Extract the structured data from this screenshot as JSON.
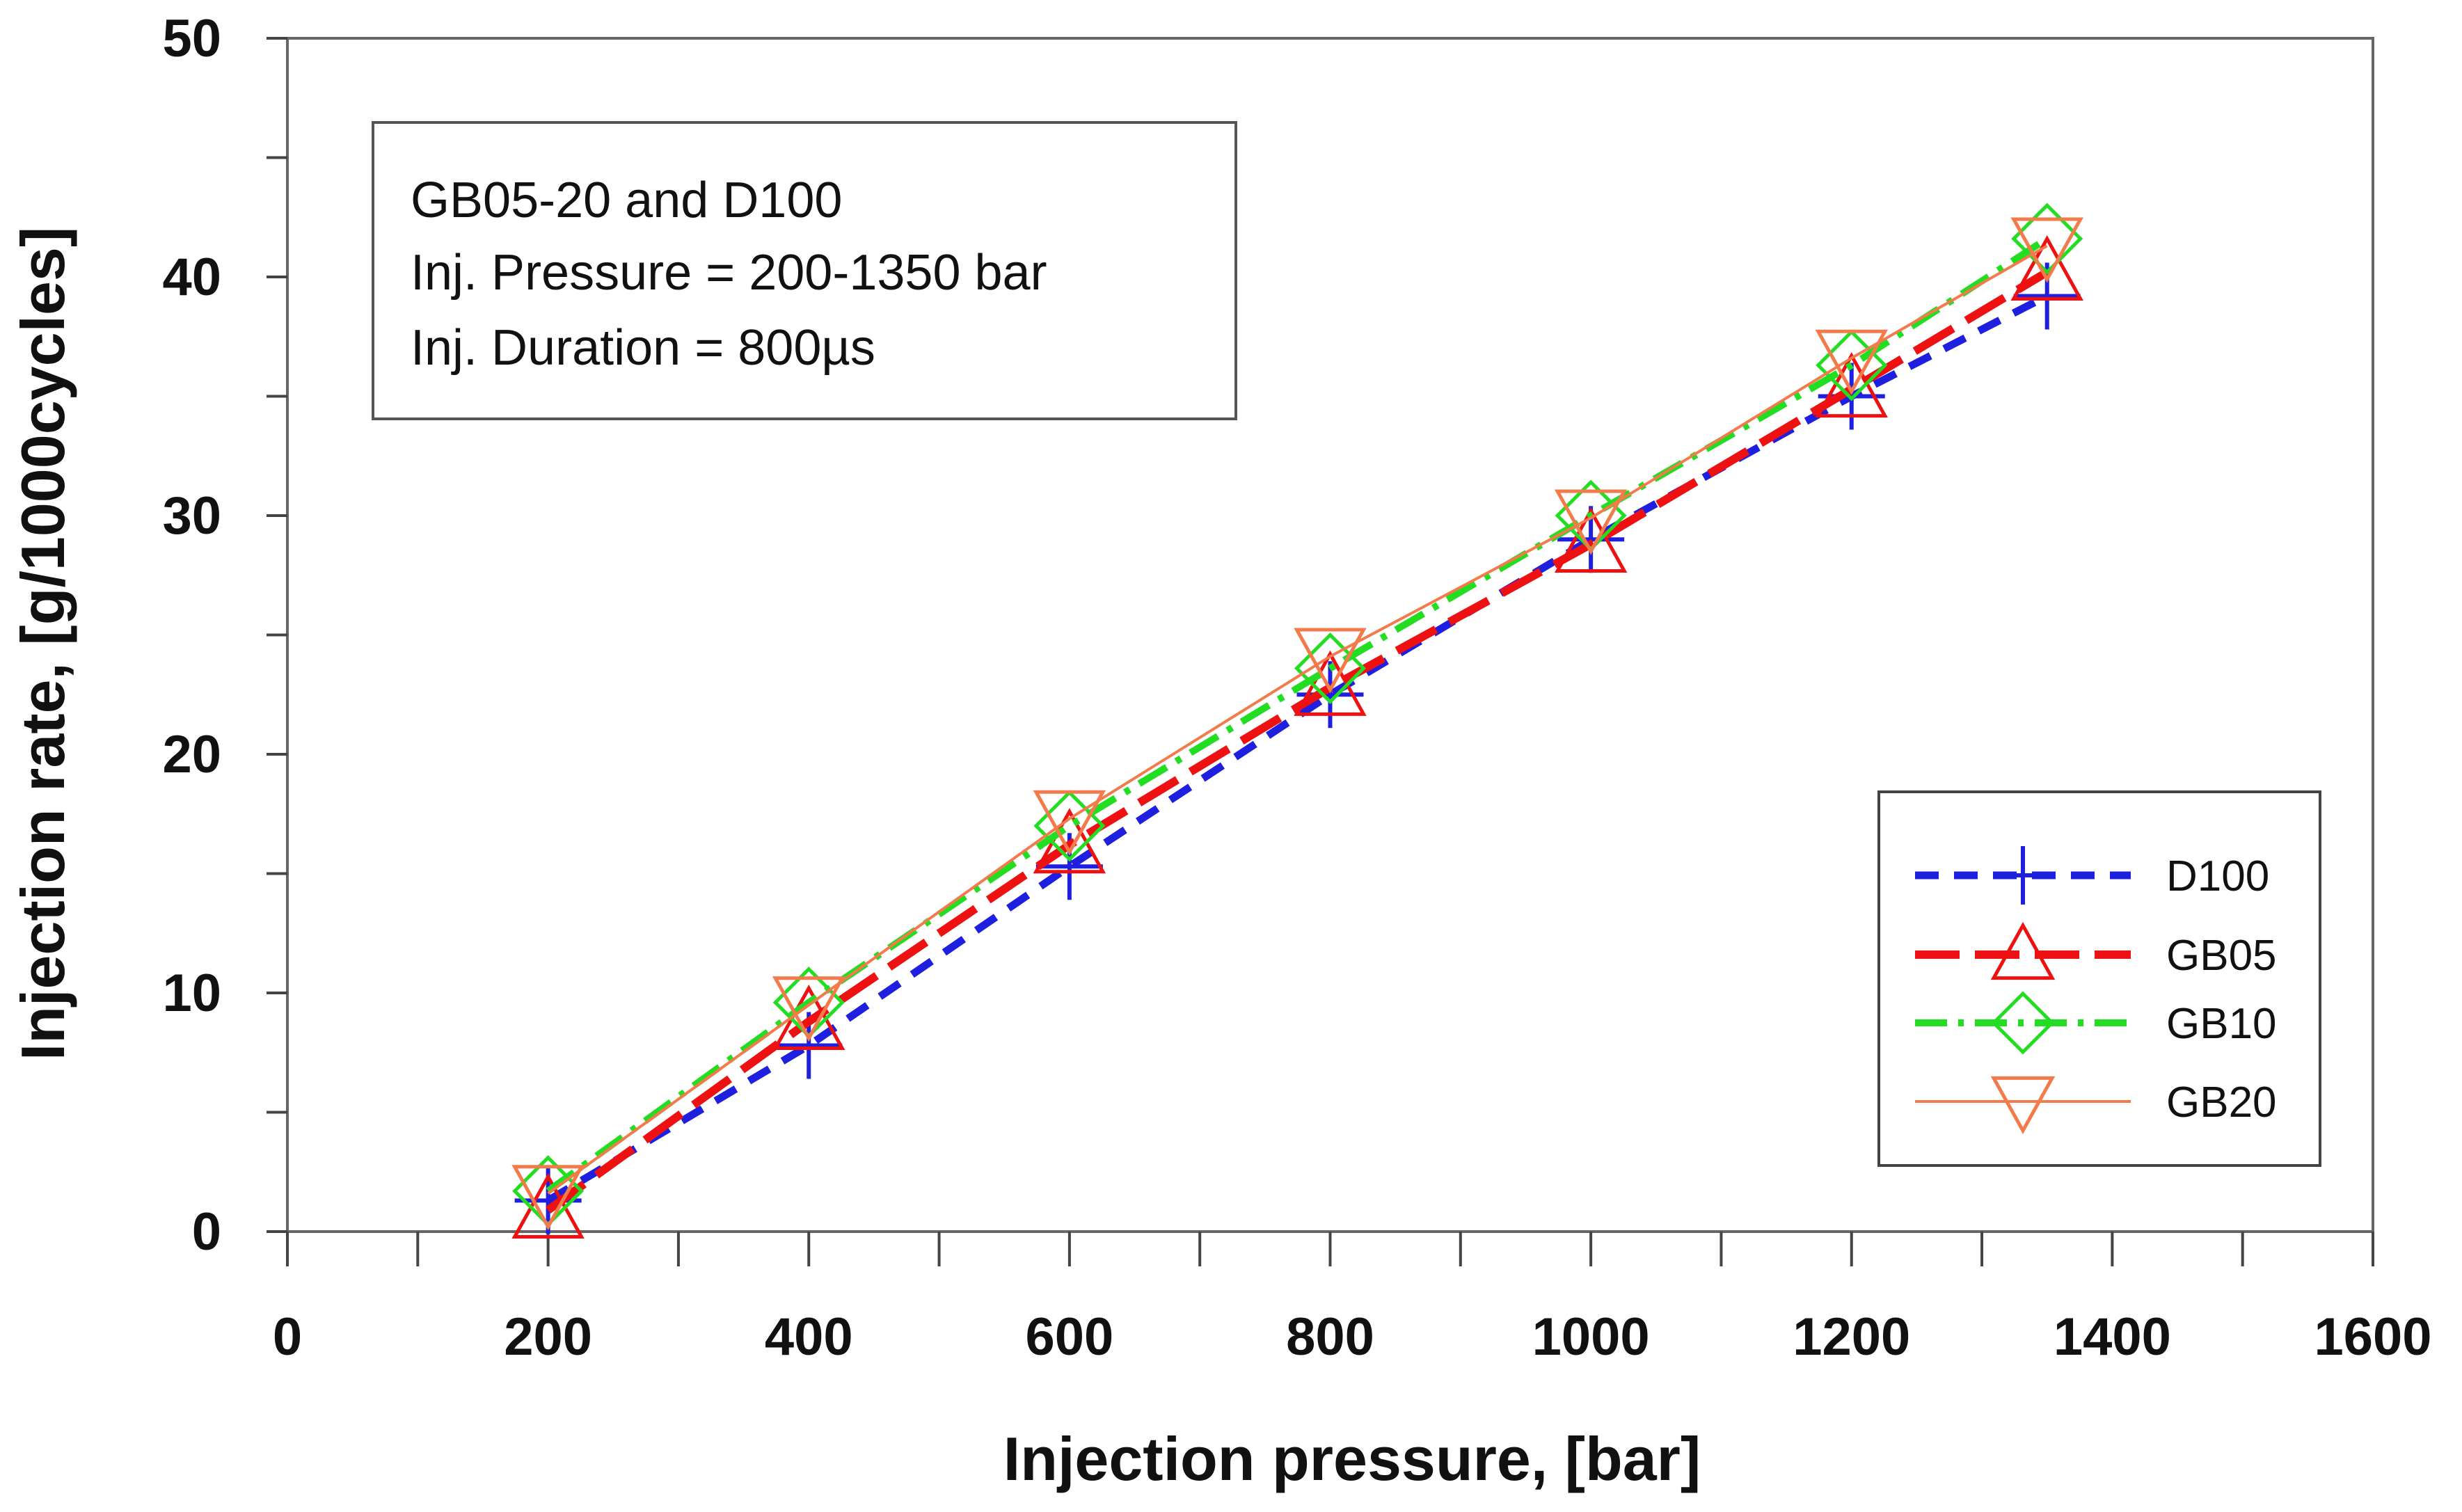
{
  "chart_data": {
    "type": "line",
    "xlabel": "Injection pressure, [bar]",
    "ylabel": "Injection rate, [g/1000cycles]",
    "xlim": [
      0,
      1600
    ],
    "ylim": [
      0,
      50
    ],
    "x_ticks": [
      "0",
      "200",
      "400",
      "600",
      "800",
      "1000",
      "1200",
      "1400",
      "1600"
    ],
    "y_ticks": [
      "0",
      "10",
      "20",
      "30",
      "40",
      "50"
    ],
    "x_tick_values": [
      0,
      200,
      400,
      600,
      800,
      1000,
      1200,
      1400,
      1600
    ],
    "y_tick_values": [
      0,
      10,
      20,
      30,
      40,
      50
    ],
    "x_minor_step": 100,
    "y_minor_step": 5,
    "grid": false,
    "annotation": {
      "lines": [
        "GB05-20 and D100",
        "Inj. Pressure = 200-1350 bar",
        "Inj. Duration = 800µs"
      ],
      "placement": "top-left"
    },
    "legend_placement": "bottom-right",
    "x": [
      200,
      400,
      600,
      800,
      1000,
      1200,
      1350
    ],
    "series": [
      {
        "name": "D100",
        "values": [
          1.3,
          7.8,
          15.3,
          22.5,
          29.0,
          35.0,
          39.2
        ],
        "color": "#1f1fe0",
        "marker": "plus",
        "dash": "dash"
      },
      {
        "name": "GB05",
        "values": [
          0.9,
          8.8,
          16.2,
          22.8,
          28.8,
          35.3,
          40.2
        ],
        "color": "#ee1111",
        "marker": "triangle-up",
        "dash": "longdash"
      },
      {
        "name": "GB10",
        "values": [
          1.7,
          9.6,
          17.0,
          23.6,
          30.0,
          36.3,
          41.6
        ],
        "color": "#22dd22",
        "marker": "diamond",
        "dash": "dashdot"
      },
      {
        "name": "GB20",
        "values": [
          1.6,
          9.5,
          17.3,
          24.1,
          29.9,
          36.6,
          41.3
        ],
        "color": "#f37a4a",
        "marker": "triangle-down",
        "dash": "solid"
      }
    ]
  }
}
